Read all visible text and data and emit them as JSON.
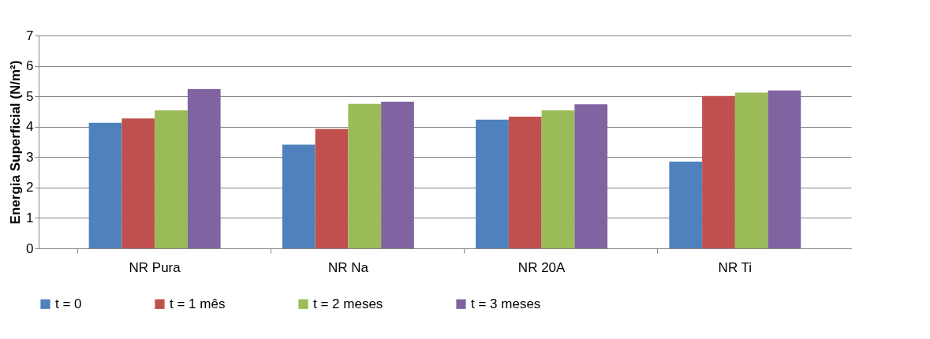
{
  "chart_data": {
    "type": "bar",
    "ylabel": "Energia  Superficial (N/m²)",
    "categories": [
      "NR Pura",
      "NR Na",
      "NR 20A",
      "NR Ti"
    ],
    "series": [
      {
        "name": "t = 0",
        "color": "#4f81bd",
        "values": [
          4.13,
          3.41,
          4.23,
          2.85
        ]
      },
      {
        "name": "t = 1 mês",
        "color": "#c0504d",
        "values": [
          4.27,
          3.93,
          4.33,
          5.01
        ]
      },
      {
        "name": "t = 2 meses",
        "color": "#9bbb59",
        "values": [
          4.54,
          4.75,
          4.54,
          5.12
        ]
      },
      {
        "name": "t = 3 meses",
        "color": "#8064a2",
        "values": [
          5.24,
          4.82,
          4.74,
          5.19
        ]
      }
    ],
    "ylim": [
      0,
      7
    ],
    "yticks": [
      0,
      1,
      2,
      3,
      4,
      5,
      6,
      7
    ],
    "grid": "y",
    "legend": "bottom"
  }
}
